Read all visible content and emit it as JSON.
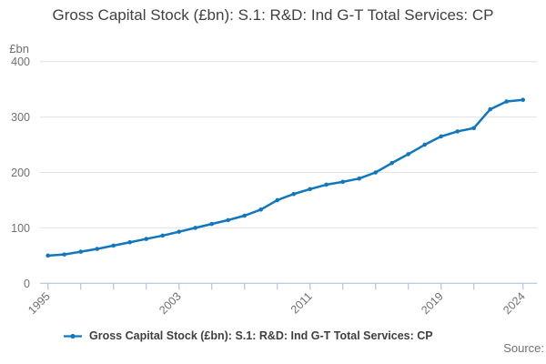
{
  "title": "Gross Capital Stock (£bn): S.1: R&D: Ind G-T Total Services: CP",
  "y_axis_unit": "£bn",
  "legend": {
    "label": "Gross Capital Stock (£bn): S.1: R&D: Ind G-T Total Services: CP"
  },
  "source_label": "Source:",
  "colors": {
    "line": "#1177bd",
    "grid": "#e3e3e3",
    "axis": "#b4c3e4",
    "title_text": "#414042",
    "tick_text": "#6f6f71",
    "legend_text": "#3f3f41",
    "source_text": "#717171"
  },
  "chart_data": {
    "type": "line",
    "title": "Gross Capital Stock (£bn): S.1: R&D: Ind G-T Total Services: CP",
    "ylabel": "£bn",
    "ylim": [
      0,
      400
    ],
    "yticks": [
      0,
      100,
      200,
      300,
      400
    ],
    "xticks": [
      1995,
      1997,
      1999,
      2001,
      2003,
      2005,
      2007,
      2009,
      2011,
      2013,
      2015,
      2017,
      2019,
      2021,
      2024
    ],
    "xtick_labels": [
      1995,
      2003,
      2011,
      2019,
      2024
    ],
    "grid": "horizontal",
    "legend_position": "bottom",
    "x": [
      1995,
      1996,
      1997,
      1998,
      1999,
      2000,
      2001,
      2002,
      2003,
      2004,
      2005,
      2006,
      2007,
      2008,
      2009,
      2010,
      2011,
      2012,
      2013,
      2014,
      2015,
      2016,
      2017,
      2018,
      2019,
      2020,
      2021,
      2022,
      2023,
      2024
    ],
    "series": [
      {
        "name": "Gross Capital Stock (£bn): S.1: R&D: Ind G-T Total Services: CP",
        "values": [
          50,
          52,
          57,
          62,
          68,
          74,
          80,
          86,
          93,
          100,
          107,
          114,
          122,
          133,
          150,
          161,
          170,
          178,
          183,
          189,
          200,
          217,
          233,
          250,
          265,
          274,
          280,
          314,
          328,
          331
        ]
      }
    ]
  }
}
